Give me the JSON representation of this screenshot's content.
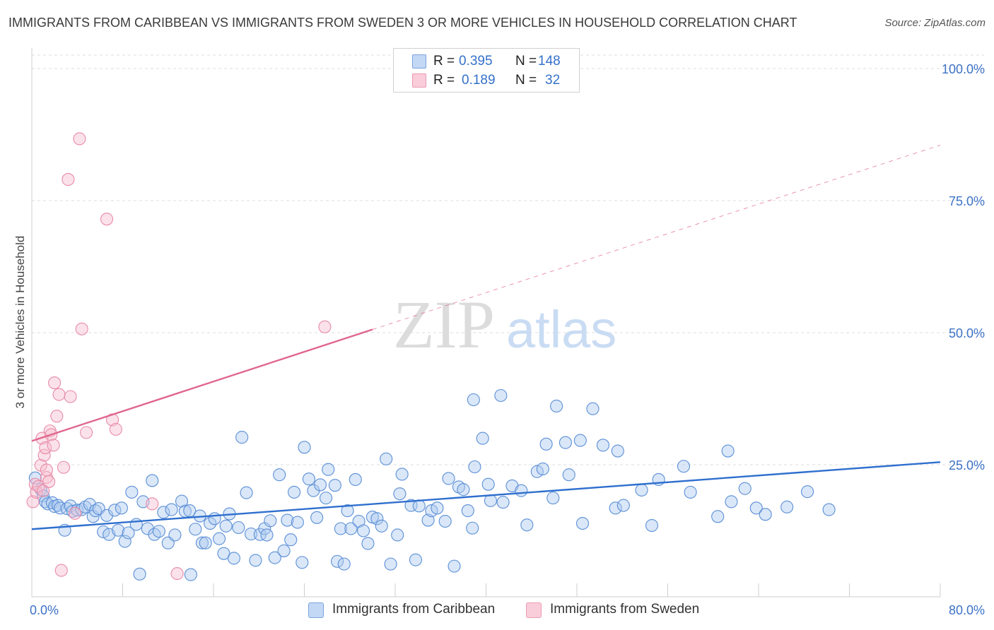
{
  "title": "IMMIGRANTS FROM CARIBBEAN VS IMMIGRANTS FROM SWEDEN 3 OR MORE VEHICLES IN HOUSEHOLD CORRELATION CHART",
  "source": "Source: ZipAtlas.com",
  "watermark": {
    "zip": "ZIP",
    "atlas": "atlas"
  },
  "legend": {
    "r_label": "R =",
    "n_label": "N =",
    "caribbean": {
      "r": "0.395",
      "n": "148"
    },
    "sweden": {
      "r": "0.189",
      "n": "32"
    }
  },
  "colors": {
    "caribbean_fill": "#aec9f0",
    "caribbean_stroke": "#5b8fd6",
    "caribbean_line": "#2f6fce",
    "sweden_fill": "#f7bfd0",
    "sweden_stroke": "#e88aa8",
    "sweden_line": "#e0678e",
    "axis_label_color": "#3d72c6"
  },
  "chart_data": {
    "type": "scatter",
    "title": "IMMIGRANTS FROM CARIBBEAN VS IMMIGRANTS FROM SWEDEN 3 OR MORE VEHICLES IN HOUSEHOLD CORRELATION CHART",
    "xlabel": "",
    "ylabel": "3 or more Vehicles in Household",
    "xlim": [
      0,
      80
    ],
    "ylim": [
      0,
      105
    ],
    "x_tick_labels": [
      "0.0%",
      "80.0%"
    ],
    "y_ticks": [
      25,
      50,
      75,
      100
    ],
    "y_tick_labels": [
      "25.0%",
      "50.0%",
      "75.0%",
      "100.0%"
    ],
    "grid": true,
    "legend_position": "top-center",
    "series": [
      {
        "name": "Immigrants from Caribbean",
        "points": [
          [
            0.3,
            22.5
          ],
          [
            0.8,
            20.3
          ],
          [
            1.0,
            19.1
          ],
          [
            1.2,
            18.0
          ],
          [
            1.4,
            17.6
          ],
          [
            1.8,
            17.8
          ],
          [
            2.0,
            17.1
          ],
          [
            2.3,
            17.3
          ],
          [
            2.5,
            16.8
          ],
          [
            2.9,
            12.6
          ],
          [
            3.1,
            16.7
          ],
          [
            3.4,
            17.2
          ],
          [
            3.6,
            16.2
          ],
          [
            4.0,
            16.4
          ],
          [
            4.4,
            16.5
          ],
          [
            4.7,
            17.0
          ],
          [
            5.1,
            17.5
          ],
          [
            5.4,
            15.2
          ],
          [
            5.6,
            16.3
          ],
          [
            5.9,
            16.7
          ],
          [
            6.3,
            12.3
          ],
          [
            6.6,
            15.4
          ],
          [
            6.8,
            11.8
          ],
          [
            7.3,
            16.4
          ],
          [
            7.6,
            12.6
          ],
          [
            7.9,
            16.8
          ],
          [
            8.2,
            10.5
          ],
          [
            8.5,
            12.1
          ],
          [
            8.8,
            19.8
          ],
          [
            9.2,
            13.7
          ],
          [
            9.5,
            4.3
          ],
          [
            9.8,
            18.0
          ],
          [
            10.2,
            12.9
          ],
          [
            10.6,
            22.0
          ],
          [
            10.8,
            11.8
          ],
          [
            11.2,
            12.4
          ],
          [
            11.6,
            16.0
          ],
          [
            12.0,
            10.2
          ],
          [
            12.3,
            16.5
          ],
          [
            12.6,
            11.7
          ],
          [
            13.2,
            18.1
          ],
          [
            13.5,
            16.2
          ],
          [
            13.9,
            16.3
          ],
          [
            14.0,
            4.2
          ],
          [
            14.4,
            12.8
          ],
          [
            14.8,
            15.3
          ],
          [
            15.0,
            10.2
          ],
          [
            15.3,
            10.2
          ],
          [
            15.7,
            13.9
          ],
          [
            16.1,
            14.8
          ],
          [
            16.5,
            11.0
          ],
          [
            16.9,
            8.2
          ],
          [
            17.1,
            13.4
          ],
          [
            17.4,
            15.7
          ],
          [
            17.8,
            7.3
          ],
          [
            18.2,
            13.1
          ],
          [
            18.5,
            30.2
          ],
          [
            18.9,
            19.7
          ],
          [
            19.3,
            11.9
          ],
          [
            19.7,
            6.9
          ],
          [
            20.1,
            11.8
          ],
          [
            20.5,
            12.9
          ],
          [
            20.7,
            11.7
          ],
          [
            21.0,
            14.4
          ],
          [
            21.4,
            7.4
          ],
          [
            21.8,
            23.1
          ],
          [
            22.2,
            8.7
          ],
          [
            22.5,
            14.5
          ],
          [
            22.8,
            10.8
          ],
          [
            23.1,
            19.8
          ],
          [
            23.4,
            14.1
          ],
          [
            23.8,
            6.5
          ],
          [
            24.0,
            28.3
          ],
          [
            24.4,
            22.3
          ],
          [
            24.8,
            20.1
          ],
          [
            25.1,
            15.0
          ],
          [
            25.4,
            21.2
          ],
          [
            25.9,
            18.7
          ],
          [
            26.1,
            24.1
          ],
          [
            26.7,
            21.1
          ],
          [
            26.9,
            6.7
          ],
          [
            27.2,
            12.9
          ],
          [
            27.5,
            6.2
          ],
          [
            27.8,
            16.3
          ],
          [
            28.1,
            12.9
          ],
          [
            28.5,
            22.2
          ],
          [
            28.8,
            14.3
          ],
          [
            29.2,
            12.5
          ],
          [
            29.6,
            10.1
          ],
          [
            30.0,
            15.1
          ],
          [
            30.4,
            14.8
          ],
          [
            30.8,
            13.4
          ],
          [
            31.2,
            26.1
          ],
          [
            31.6,
            6.2
          ],
          [
            32.2,
            11.7
          ],
          [
            32.4,
            19.5
          ],
          [
            32.6,
            23.2
          ],
          [
            33.4,
            17.3
          ],
          [
            33.8,
            7.0
          ],
          [
            34.1,
            17.2
          ],
          [
            34.9,
            14.5
          ],
          [
            35.2,
            16.3
          ],
          [
            35.7,
            16.8
          ],
          [
            36.4,
            14.3
          ],
          [
            36.7,
            22.4
          ],
          [
            37.2,
            5.8
          ],
          [
            37.6,
            20.8
          ],
          [
            38.0,
            20.3
          ],
          [
            38.4,
            16.3
          ],
          [
            38.8,
            13.0
          ],
          [
            38.9,
            37.3
          ],
          [
            39.0,
            24.6
          ],
          [
            39.7,
            30.0
          ],
          [
            40.2,
            21.3
          ],
          [
            40.4,
            18.2
          ],
          [
            41.3,
            38.1
          ],
          [
            41.5,
            17.9
          ],
          [
            42.3,
            21.0
          ],
          [
            43.1,
            20.1
          ],
          [
            43.6,
            13.6
          ],
          [
            44.5,
            23.7
          ],
          [
            45.0,
            24.2
          ],
          [
            45.3,
            28.9
          ],
          [
            45.9,
            18.7
          ],
          [
            46.2,
            36.1
          ],
          [
            47.0,
            29.2
          ],
          [
            47.3,
            23.1
          ],
          [
            48.3,
            29.6
          ],
          [
            48.5,
            13.9
          ],
          [
            49.4,
            35.6
          ],
          [
            50.3,
            28.7
          ],
          [
            51.4,
            16.8
          ],
          [
            51.6,
            27.6
          ],
          [
            52.1,
            17.3
          ],
          [
            53.7,
            20.2
          ],
          [
            55.2,
            22.2
          ],
          [
            58.0,
            19.8
          ],
          [
            61.3,
            27.6
          ],
          [
            61.6,
            18.0
          ],
          [
            63.8,
            16.8
          ],
          [
            54.6,
            13.5
          ],
          [
            57.4,
            24.7
          ],
          [
            60.4,
            15.2
          ],
          [
            62.8,
            20.5
          ],
          [
            64.6,
            15.6
          ],
          [
            66.5,
            17.0
          ],
          [
            68.3,
            19.9
          ],
          [
            70.2,
            16.5
          ]
        ],
        "trend": {
          "x": [
            0,
            80
          ],
          "y": [
            12.8,
            25.5
          ]
        }
      },
      {
        "name": "Immigrants from Sweden",
        "points": [
          [
            0.1,
            18.0
          ],
          [
            0.3,
            21.3
          ],
          [
            0.4,
            19.8
          ],
          [
            0.6,
            20.9
          ],
          [
            0.8,
            24.9
          ],
          [
            0.9,
            30.0
          ],
          [
            1.1,
            26.8
          ],
          [
            1.2,
            28.2
          ],
          [
            1.3,
            22.6
          ],
          [
            1.6,
            31.4
          ],
          [
            1.7,
            30.7
          ],
          [
            1.9,
            28.7
          ],
          [
            2.0,
            40.5
          ],
          [
            2.2,
            34.2
          ],
          [
            2.4,
            38.3
          ],
          [
            2.6,
            5.0
          ],
          [
            2.8,
            24.5
          ],
          [
            3.2,
            79.0
          ],
          [
            3.4,
            37.9
          ],
          [
            3.8,
            15.8
          ],
          [
            4.2,
            86.7
          ],
          [
            4.4,
            50.7
          ],
          [
            4.8,
            31.1
          ],
          [
            6.6,
            71.5
          ],
          [
            7.1,
            33.5
          ],
          [
            7.4,
            31.7
          ],
          [
            10.6,
            17.6
          ],
          [
            12.8,
            4.4
          ],
          [
            25.8,
            51.1
          ],
          [
            1.0,
            20.1
          ],
          [
            1.5,
            21.8
          ],
          [
            1.3,
            24.0
          ]
        ],
        "trend": {
          "x": [
            0,
            30
          ],
          "y": [
            29.5,
            50.6
          ]
        },
        "trend_extension": {
          "x": [
            30,
            80
          ],
          "y": [
            50.6,
            85.5
          ]
        }
      }
    ]
  },
  "bottom_legend": {
    "caribbean": "Immigrants from Caribbean",
    "sweden": "Immigrants from Sweden"
  }
}
